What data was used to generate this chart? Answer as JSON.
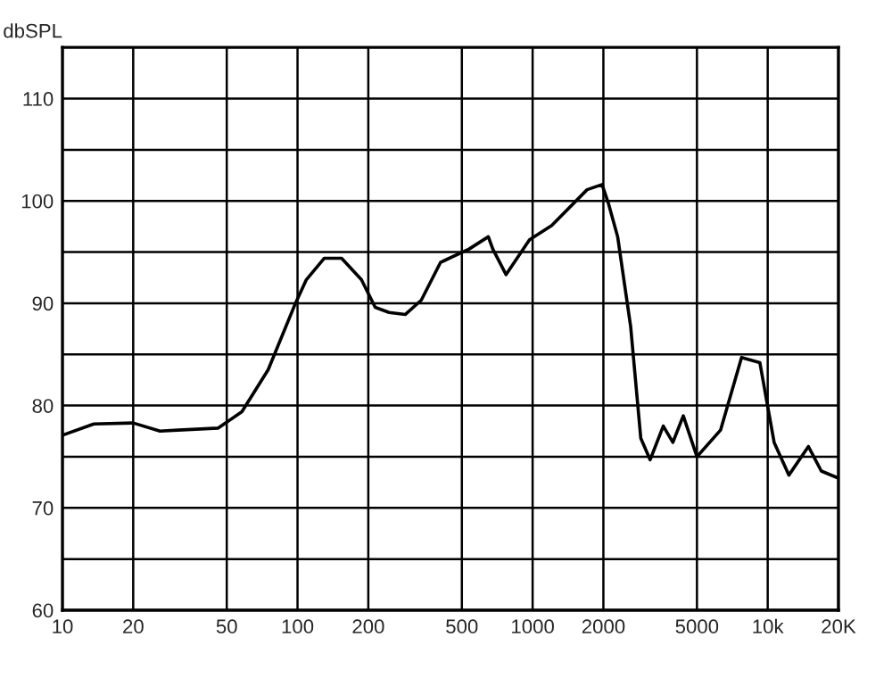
{
  "chart_data": {
    "type": "line",
    "ylabel": "dbSPL",
    "log": "x",
    "grid": true,
    "marker": "none",
    "line_style": "solid",
    "xlim": [
      10,
      20000
    ],
    "ylim": [
      60,
      115
    ],
    "xticks": [
      10,
      20,
      50,
      100,
      200,
      500,
      1000,
      2000,
      5000,
      {
        "value": 10000,
        "label": "10k"
      },
      {
        "value": 20000,
        "label": "20K"
      }
    ],
    "yticks": [
      60,
      {
        "value": 65,
        "label": null
      },
      70,
      {
        "value": 75,
        "label": null
      },
      80,
      {
        "value": 85,
        "label": null
      },
      90,
      {
        "value": 95,
        "label": null
      },
      100,
      {
        "value": 105,
        "label": null
      },
      110
    ],
    "series": [
      {
        "color": "#000000",
        "x": [
          10,
          13.6,
          20,
          26,
          31,
          46,
          58,
          75,
          98,
          109,
          130,
          154,
          187,
          214,
          245,
          287,
          336,
          406,
          424,
          537,
          648,
          677,
          771,
          970,
          1206,
          1705,
          1974,
          2105,
          2300,
          2613,
          2885,
          3162,
          3595,
          3950,
          4375,
          5000,
          6300,
          7740,
          9260,
          10650,
          12300,
          14900,
          16900,
          20000
        ],
        "values": [
          77.1,
          78.2,
          78.3,
          77.5,
          77.6,
          77.8,
          79.4,
          83.5,
          90,
          92.3,
          94.4,
          94.4,
          92.3,
          89.6,
          89.1,
          88.9,
          90.3,
          94,
          94.2,
          95.3,
          96.5,
          95.3,
          92.8,
          96.2,
          97.6,
          101.1,
          101.6,
          99.7,
          96.5,
          87.7,
          76.8,
          74.7,
          78,
          76.4,
          79,
          75,
          77.6,
          84.7,
          84.2,
          76.4,
          73.2,
          76,
          73.6,
          72.9
        ]
      }
    ]
  }
}
